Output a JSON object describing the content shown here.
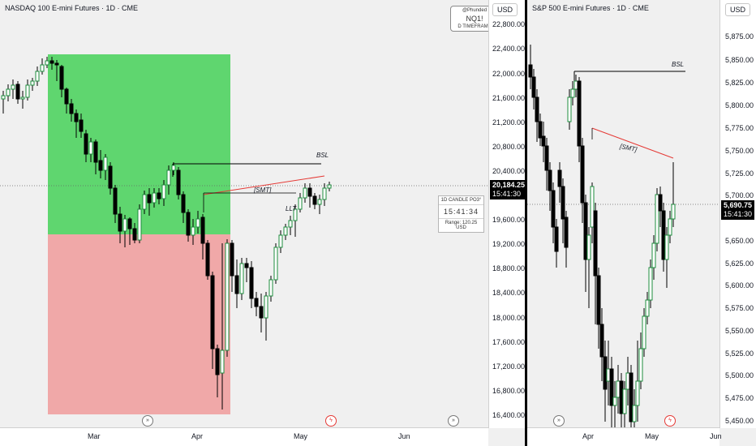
{
  "left_chart": {
    "title": "NASDAQ 100 E-mini Futures · 1D · CME",
    "currency": "USD",
    "y_ticks": [
      "22,800.00",
      "22,400.00",
      "22,000.00",
      "21,600.00",
      "21,200.00",
      "20,800.00",
      "20,400.00",
      "19,600.00",
      "19,200.00",
      "18,800.00",
      "18,400.00",
      "18,000.00",
      "17,600.00",
      "17,200.00",
      "16,800.00",
      "16,400.00"
    ],
    "x_ticks": [
      "Mar",
      "Apr",
      "May",
      "Jun"
    ],
    "last_price": "20,184.25",
    "countdown": "15:41:30",
    "watermark": {
      "line1": "@Phunded",
      "line2": "NQ1!",
      "line3": "D TIMEFRAME"
    },
    "info_box": {
      "title": "1D CANDLE PO3°",
      "timer": "15:41:34",
      "range": "Range: 120.25 USD"
    },
    "annotations": {
      "bsl": "BSL",
      "smt": "[SMT]",
      "llt": "LLT"
    },
    "colors": {
      "premium_zone": "#4fd360",
      "discount_zone": "#f0a0a0",
      "candle": "#000000",
      "smt_line": "#e53935"
    }
  },
  "right_chart": {
    "title": "S&P 500 E-mini Futures · 1D · CME",
    "currency": "USD",
    "y_ticks": [
      "5,875.00",
      "5,850.00",
      "5,825.00",
      "5,800.00",
      "5,775.00",
      "5,750.00",
      "5,725.00",
      "5,700.00",
      "5,650.00",
      "5,625.00",
      "5,600.00",
      "5,575.00",
      "5,550.00",
      "5,525.00",
      "5,500.00",
      "5,475.00",
      "5,450.00"
    ],
    "x_ticks": [
      "Apr",
      "May",
      "Jun"
    ],
    "last_price": "5,690.75",
    "countdown": "15:41:30",
    "annotations": {
      "bsl": "BSL",
      "smt": "[SMT]"
    }
  },
  "icons": {
    "event": "arrow-circle-icon",
    "earnings": "flash-circle-icon"
  }
}
